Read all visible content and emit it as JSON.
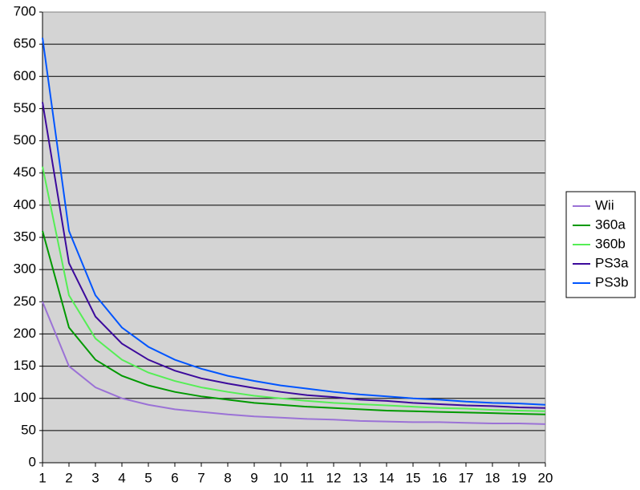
{
  "chart_data": {
    "type": "line",
    "x": [
      1,
      2,
      3,
      4,
      5,
      6,
      7,
      8,
      9,
      10,
      11,
      12,
      13,
      14,
      15,
      16,
      17,
      18,
      19,
      20
    ],
    "xlim": [
      1,
      20
    ],
    "xticks": [
      1,
      2,
      3,
      4,
      5,
      6,
      7,
      8,
      9,
      10,
      11,
      12,
      13,
      14,
      15,
      16,
      17,
      18,
      19,
      20
    ],
    "ylim": [
      0,
      700
    ],
    "yticks": [
      0,
      50,
      100,
      150,
      200,
      250,
      300,
      350,
      400,
      450,
      500,
      550,
      600,
      650,
      700
    ],
    "grid": true,
    "legend": "right",
    "series": [
      {
        "name": "Wii",
        "color": "#9b72d6",
        "values": [
          250,
          150,
          117,
          100,
          90,
          83,
          79,
          75,
          72,
          70,
          68,
          67,
          65,
          64,
          63,
          63,
          62,
          61,
          61,
          60
        ]
      },
      {
        "name": "360a",
        "color": "#009900",
        "values": [
          360,
          210,
          160,
          135,
          120,
          110,
          103,
          98,
          93,
          90,
          87,
          85,
          83,
          81,
          80,
          79,
          78,
          77,
          76,
          75
        ]
      },
      {
        "name": "360b",
        "color": "#55ee55",
        "values": [
          460,
          260,
          193,
          160,
          140,
          127,
          117,
          110,
          104,
          100,
          96,
          93,
          91,
          89,
          87,
          85,
          84,
          82,
          81,
          80
        ]
      },
      {
        "name": "PS3a",
        "color": "#3c0a9c",
        "values": [
          560,
          310,
          227,
          185,
          160,
          143,
          131,
          123,
          116,
          110,
          105,
          102,
          98,
          96,
          93,
          91,
          89,
          88,
          86,
          85
        ]
      },
      {
        "name": "PS3b",
        "color": "#0055ff",
        "values": [
          660,
          360,
          260,
          210,
          180,
          160,
          146,
          135,
          127,
          120,
          115,
          110,
          106,
          103,
          100,
          98,
          95,
          93,
          92,
          90
        ]
      }
    ]
  }
}
